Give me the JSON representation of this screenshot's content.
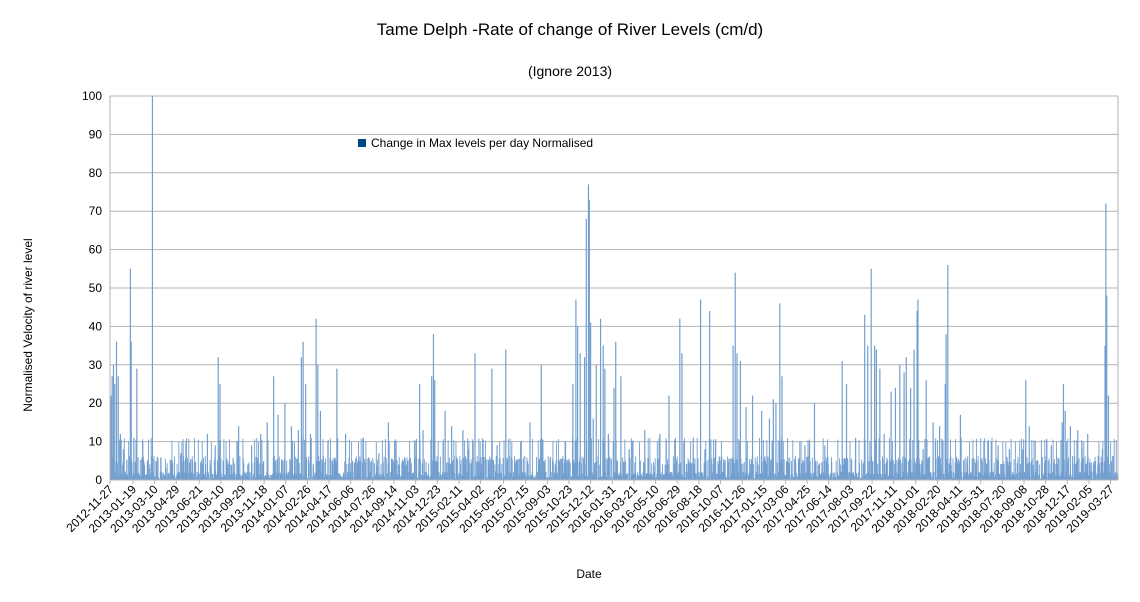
{
  "chart_data": {
    "type": "bar",
    "title": "Tame Delph -Rate of change of River Levels (cm/d)",
    "subtitle": "(Ignore 2013)",
    "xlabel": "Date",
    "ylabel": "Normalised Velocity of river level",
    "ylim": [
      0,
      100
    ],
    "yticks": [
      0,
      10,
      20,
      30,
      40,
      50,
      60,
      70,
      80,
      90,
      100
    ],
    "grid": true,
    "legend_position": "inside top-left",
    "colors": {
      "bar": "#729fcf",
      "legend_swatch": "#004586",
      "grid": "#b3b3b3"
    },
    "x_range": [
      "2012-11-27",
      "2019-04-13"
    ],
    "xtick_labels": [
      "2012-11-27",
      "2013-01-19",
      "2013-03-10",
      "2013-04-29",
      "2013-06-21",
      "2013-08-10",
      "2013-09-29",
      "2013-11-18",
      "2014-01-07",
      "2014-02-26",
      "2014-04-17",
      "2014-06-06",
      "2014-07-26",
      "2014-09-14",
      "2014-11-03",
      "2014-12-23",
      "2015-02-11",
      "2015-04-02",
      "2015-05-25",
      "2015-07-15",
      "2015-09-03",
      "2015-10-23",
      "2015-12-12",
      "2016-01-31",
      "2016-03-21",
      "2016-05-10",
      "2016-06-29",
      "2016-08-18",
      "2016-10-07",
      "2016-11-26",
      "2017-01-15",
      "2017-03-06",
      "2017-04-25",
      "2017-06-14",
      "2017-08-03",
      "2017-09-22",
      "2017-11-11",
      "2018-01-01",
      "2018-02-20",
      "2018-04-11",
      "2018-05-31",
      "2018-07-20",
      "2018-09-08",
      "2018-10-28",
      "2018-12-17",
      "2019-02-05",
      "2019-03-27"
    ],
    "series": [
      {
        "name": "Change in Max levels per day Normalised",
        "points": [
          {
            "x": "2012-11-28",
            "y": 21
          },
          {
            "x": "2012-11-30",
            "y": 22
          },
          {
            "x": "2012-12-02",
            "y": 27
          },
          {
            "x": "2012-12-05",
            "y": 30
          },
          {
            "x": "2012-12-08",
            "y": 25
          },
          {
            "x": "2012-12-12",
            "y": 36
          },
          {
            "x": "2012-12-16",
            "y": 27
          },
          {
            "x": "2012-12-21",
            "y": 12
          },
          {
            "x": "2012-12-28",
            "y": 8
          },
          {
            "x": "2013-01-05",
            "y": 5
          },
          {
            "x": "2013-01-13",
            "y": 55
          },
          {
            "x": "2013-01-15",
            "y": 36
          },
          {
            "x": "2013-01-21",
            "y": 11
          },
          {
            "x": "2013-01-28",
            "y": 29
          },
          {
            "x": "2013-02-10",
            "y": 4
          },
          {
            "x": "2013-02-25",
            "y": 3
          },
          {
            "x": "2013-03-05",
            "y": 100
          },
          {
            "x": "2013-03-15",
            "y": 4
          },
          {
            "x": "2013-04-05",
            "y": 3
          },
          {
            "x": "2013-05-10",
            "y": 7
          },
          {
            "x": "2013-06-05",
            "y": 2
          },
          {
            "x": "2013-07-10",
            "y": 12
          },
          {
            "x": "2013-07-28",
            "y": 9
          },
          {
            "x": "2013-08-04",
            "y": 32
          },
          {
            "x": "2013-08-08",
            "y": 25
          },
          {
            "x": "2013-08-25",
            "y": 4
          },
          {
            "x": "2013-09-20",
            "y": 14
          },
          {
            "x": "2013-10-20",
            "y": 9
          },
          {
            "x": "2013-11-10",
            "y": 12
          },
          {
            "x": "2013-11-25",
            "y": 15
          },
          {
            "x": "2013-12-10",
            "y": 27
          },
          {
            "x": "2013-12-20",
            "y": 17
          },
          {
            "x": "2014-01-05",
            "y": 20
          },
          {
            "x": "2014-01-20",
            "y": 14
          },
          {
            "x": "2014-02-05",
            "y": 13
          },
          {
            "x": "2014-02-12",
            "y": 32
          },
          {
            "x": "2014-02-16",
            "y": 36
          },
          {
            "x": "2014-02-22",
            "y": 25
          },
          {
            "x": "2014-03-05",
            "y": 12
          },
          {
            "x": "2014-03-18",
            "y": 42
          },
          {
            "x": "2014-03-22",
            "y": 30
          },
          {
            "x": "2014-03-28",
            "y": 18
          },
          {
            "x": "2014-05-05",
            "y": 29
          },
          {
            "x": "2014-05-25",
            "y": 12
          },
          {
            "x": "2014-06-10",
            "y": 5
          },
          {
            "x": "2014-07-05",
            "y": 11
          },
          {
            "x": "2014-08-10",
            "y": 7
          },
          {
            "x": "2014-09-01",
            "y": 15
          },
          {
            "x": "2014-10-10",
            "y": 3
          },
          {
            "x": "2014-11-01",
            "y": 4
          },
          {
            "x": "2014-11-12",
            "y": 25
          },
          {
            "x": "2014-11-20",
            "y": 13
          },
          {
            "x": "2014-12-10",
            "y": 27
          },
          {
            "x": "2014-12-14",
            "y": 38
          },
          {
            "x": "2014-12-17",
            "y": 26
          },
          {
            "x": "2015-01-10",
            "y": 18
          },
          {
            "x": "2015-01-25",
            "y": 14
          },
          {
            "x": "2015-02-20",
            "y": 13
          },
          {
            "x": "2015-03-05",
            "y": 8
          },
          {
            "x": "2015-03-20",
            "y": 33
          },
          {
            "x": "2015-04-10",
            "y": 6
          },
          {
            "x": "2015-04-28",
            "y": 29
          },
          {
            "x": "2015-05-10",
            "y": 9
          },
          {
            "x": "2015-05-30",
            "y": 34
          },
          {
            "x": "2015-06-20",
            "y": 4
          },
          {
            "x": "2015-07-25",
            "y": 15
          },
          {
            "x": "2015-08-20",
            "y": 30
          },
          {
            "x": "2015-09-10",
            "y": 6
          },
          {
            "x": "2015-10-01",
            "y": 5
          },
          {
            "x": "2015-10-15",
            "y": 10
          },
          {
            "x": "2015-11-01",
            "y": 25
          },
          {
            "x": "2015-11-08",
            "y": 47
          },
          {
            "x": "2015-11-12",
            "y": 40
          },
          {
            "x": "2015-11-18",
            "y": 33
          },
          {
            "x": "2015-11-28",
            "y": 32
          },
          {
            "x": "2015-12-02",
            "y": 68
          },
          {
            "x": "2015-12-07",
            "y": 77
          },
          {
            "x": "2015-12-09",
            "y": 73
          },
          {
            "x": "2015-12-12",
            "y": 41
          },
          {
            "x": "2015-12-18",
            "y": 16
          },
          {
            "x": "2015-12-25",
            "y": 30
          },
          {
            "x": "2016-01-04",
            "y": 42
          },
          {
            "x": "2016-01-10",
            "y": 35
          },
          {
            "x": "2016-01-14",
            "y": 29
          },
          {
            "x": "2016-01-22",
            "y": 12
          },
          {
            "x": "2016-02-04",
            "y": 24
          },
          {
            "x": "2016-02-08",
            "y": 36
          },
          {
            "x": "2016-02-20",
            "y": 27
          },
          {
            "x": "2016-03-10",
            "y": 8
          },
          {
            "x": "2016-04-15",
            "y": 13
          },
          {
            "x": "2016-05-20",
            "y": 12
          },
          {
            "x": "2016-06-10",
            "y": 22
          },
          {
            "x": "2016-07-05",
            "y": 42
          },
          {
            "x": "2016-07-10",
            "y": 33
          },
          {
            "x": "2016-08-05",
            "y": 11
          },
          {
            "x": "2016-08-22",
            "y": 47
          },
          {
            "x": "2016-09-01",
            "y": 8
          },
          {
            "x": "2016-09-12",
            "y": 44
          },
          {
            "x": "2016-10-05",
            "y": 6
          },
          {
            "x": "2016-11-05",
            "y": 35
          },
          {
            "x": "2016-11-10",
            "y": 54
          },
          {
            "x": "2016-11-14",
            "y": 33
          },
          {
            "x": "2016-11-22",
            "y": 31
          },
          {
            "x": "2016-12-05",
            "y": 19
          },
          {
            "x": "2016-12-20",
            "y": 22
          },
          {
            "x": "2017-01-10",
            "y": 18
          },
          {
            "x": "2017-01-28",
            "y": 16
          },
          {
            "x": "2017-02-06",
            "y": 21
          },
          {
            "x": "2017-02-12",
            "y": 20
          },
          {
            "x": "2017-02-21",
            "y": 46
          },
          {
            "x": "2017-02-26",
            "y": 27
          },
          {
            "x": "2017-03-10",
            "y": 5
          },
          {
            "x": "2017-04-20",
            "y": 9
          },
          {
            "x": "2017-05-12",
            "y": 20
          },
          {
            "x": "2017-06-05",
            "y": 9
          },
          {
            "x": "2017-07-15",
            "y": 31
          },
          {
            "x": "2017-07-25",
            "y": 25
          },
          {
            "x": "2017-08-15",
            "y": 11
          },
          {
            "x": "2017-09-05",
            "y": 43
          },
          {
            "x": "2017-09-12",
            "y": 35
          },
          {
            "x": "2017-09-20",
            "y": 55
          },
          {
            "x": "2017-09-28",
            "y": 35
          },
          {
            "x": "2017-10-02",
            "y": 34
          },
          {
            "x": "2017-10-10",
            "y": 29
          },
          {
            "x": "2017-10-20",
            "y": 12
          },
          {
            "x": "2017-11-05",
            "y": 23
          },
          {
            "x": "2017-11-15",
            "y": 24
          },
          {
            "x": "2017-11-25",
            "y": 30
          },
          {
            "x": "2017-12-05",
            "y": 28
          },
          {
            "x": "2017-12-10",
            "y": 32
          },
          {
            "x": "2017-12-20",
            "y": 24
          },
          {
            "x": "2017-12-28",
            "y": 34
          },
          {
            "x": "2018-01-04",
            "y": 44
          },
          {
            "x": "2018-01-06",
            "y": 47
          },
          {
            "x": "2018-01-18",
            "y": 8
          },
          {
            "x": "2018-01-25",
            "y": 26
          },
          {
            "x": "2018-02-10",
            "y": 15
          },
          {
            "x": "2018-02-25",
            "y": 14
          },
          {
            "x": "2018-03-10",
            "y": 25
          },
          {
            "x": "2018-03-12",
            "y": 38
          },
          {
            "x": "2018-03-16",
            "y": 56
          },
          {
            "x": "2018-04-05",
            "y": 6
          },
          {
            "x": "2018-04-14",
            "y": 17
          },
          {
            "x": "2018-05-05",
            "y": 3
          },
          {
            "x": "2018-06-10",
            "y": 2
          },
          {
            "x": "2018-07-10",
            "y": 9
          },
          {
            "x": "2018-08-05",
            "y": 8
          },
          {
            "x": "2018-08-25",
            "y": 5
          },
          {
            "x": "2018-09-05",
            "y": 8
          },
          {
            "x": "2018-09-12",
            "y": 26
          },
          {
            "x": "2018-09-20",
            "y": 14
          },
          {
            "x": "2018-10-20",
            "y": 6
          },
          {
            "x": "2018-11-10",
            "y": 9
          },
          {
            "x": "2018-12-05",
            "y": 15
          },
          {
            "x": "2018-12-08",
            "y": 25
          },
          {
            "x": "2018-12-12",
            "y": 18
          },
          {
            "x": "2018-12-24",
            "y": 14
          },
          {
            "x": "2019-01-10",
            "y": 13
          },
          {
            "x": "2019-01-20",
            "y": 8
          },
          {
            "x": "2019-02-02",
            "y": 12
          },
          {
            "x": "2019-02-20",
            "y": 5
          },
          {
            "x": "2019-03-08",
            "y": 8
          },
          {
            "x": "2019-03-14",
            "y": 35
          },
          {
            "x": "2019-03-16",
            "y": 72
          },
          {
            "x": "2019-03-18",
            "y": 48
          },
          {
            "x": "2019-03-22",
            "y": 22
          },
          {
            "x": "2019-03-30",
            "y": 4
          }
        ]
      }
    ]
  }
}
